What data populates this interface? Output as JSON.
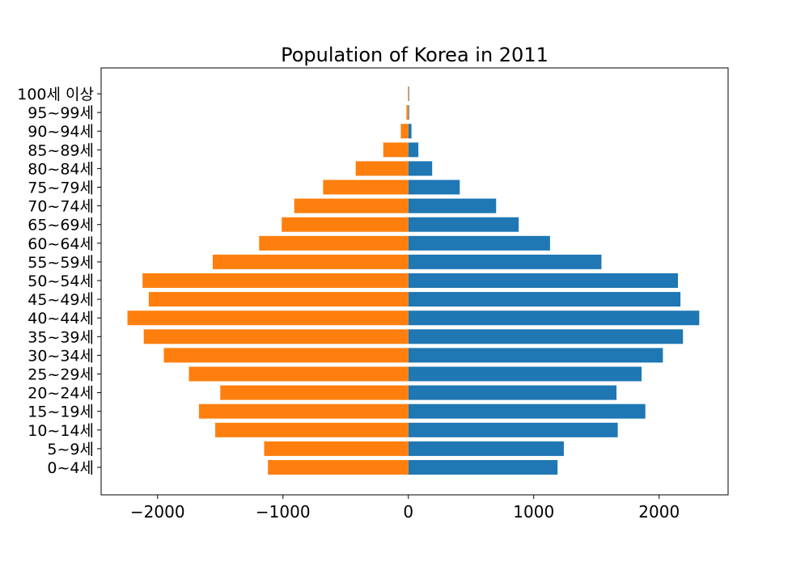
{
  "chart_data": {
    "type": "bar",
    "orientation": "horizontal",
    "title": "Population of Korea in 2011",
    "xlabel": "",
    "ylabel": "",
    "categories": [
      "0~4세",
      "5~9세",
      "10~14세",
      "15~19세",
      "20~24세",
      "25~29세",
      "30~34세",
      "35~39세",
      "40~44세",
      "45~49세",
      "50~54세",
      "55~59세",
      "60~64세",
      "65~69세",
      "70~74세",
      "75~79세",
      "80~84세",
      "85~89세",
      "90~94세",
      "95~99세",
      "100세 이상"
    ],
    "series": [
      {
        "color": "#1f77b4",
        "values": [
          1190,
          1240,
          1670,
          1890,
          1660,
          1860,
          2030,
          2190,
          2320,
          2170,
          2150,
          1540,
          1130,
          880,
          700,
          410,
          190,
          80,
          25,
          5,
          2
        ]
      },
      {
        "color": "#ff7f0e",
        "values": [
          -1120,
          -1150,
          -1540,
          -1670,
          -1500,
          -1750,
          -1950,
          -2110,
          -2240,
          -2070,
          -2120,
          -1560,
          -1190,
          -1010,
          -910,
          -680,
          -420,
          -200,
          -60,
          -15,
          -3
        ]
      }
    ],
    "xlim": [
      -2450,
      2550
    ],
    "xticks": [
      -2000,
      -1000,
      0,
      1000,
      2000
    ],
    "grid": false,
    "legend": "none"
  }
}
